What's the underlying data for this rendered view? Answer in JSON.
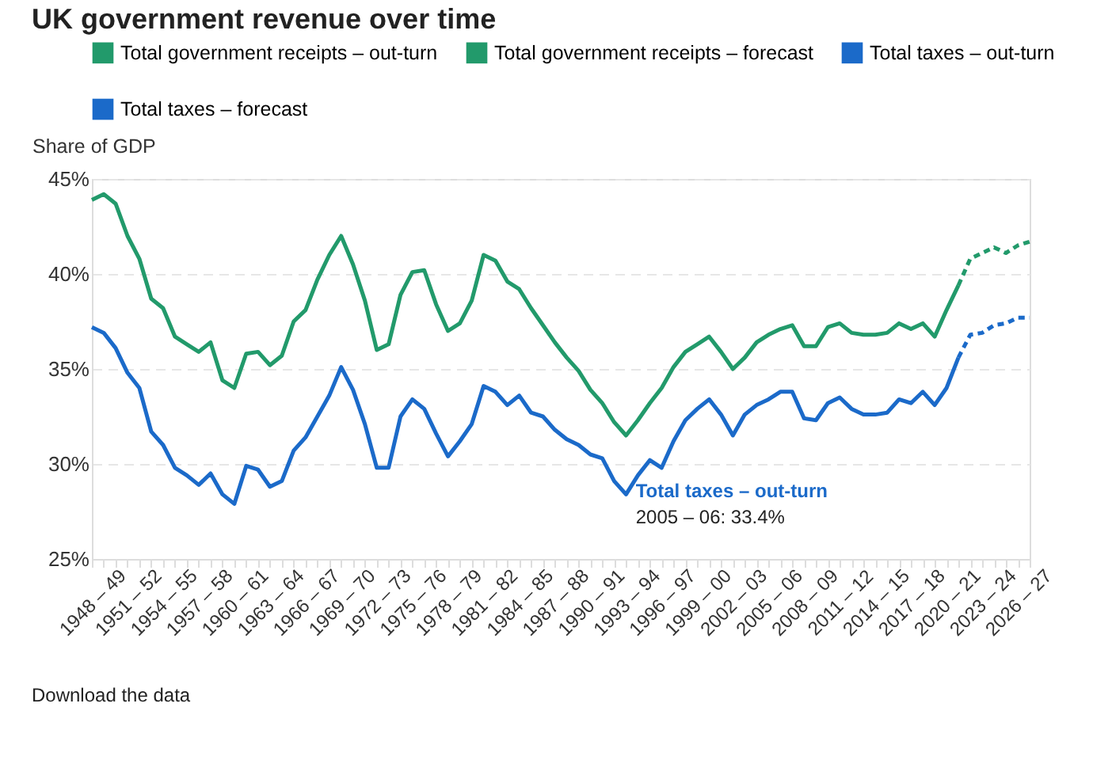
{
  "chart_data": {
    "type": "line",
    "title": "UK government revenue over time",
    "ylabel": "Share of GDP",
    "categories": [
      "1948 – 49",
      null,
      null,
      "1951 – 52",
      null,
      null,
      "1954 – 55",
      null,
      null,
      "1957 – 58",
      null,
      null,
      "1960 – 61",
      null,
      null,
      "1963 – 64",
      null,
      null,
      "1966 – 67",
      null,
      null,
      "1969 – 70",
      null,
      null,
      "1972 – 73",
      null,
      null,
      "1975 – 76",
      null,
      null,
      "1978 – 79",
      null,
      null,
      "1981 – 82",
      null,
      null,
      "1984 – 85",
      null,
      null,
      "1987 – 88",
      null,
      null,
      "1990 – 91",
      null,
      null,
      "1993 – 94",
      null,
      null,
      "1996 – 97",
      null,
      null,
      "1999 – 00",
      null,
      null,
      "2002 – 03",
      null,
      null,
      "2005 – 06",
      null,
      null,
      "2008 – 09",
      null,
      null,
      "2011 – 12",
      null,
      null,
      "2014 – 15",
      null,
      null,
      "2017 – 18",
      null,
      null,
      "2020 – 21",
      null,
      null,
      "2023 – 24",
      null,
      null,
      "2026 – 27",
      null
    ],
    "series": [
      {
        "name": "Total government receipts – out-turn",
        "color": "#229a6b",
        "line_style": "solid",
        "values": [
          43.9,
          44.2,
          43.7,
          42.0,
          40.8,
          38.7,
          38.2,
          36.7,
          36.3,
          35.9,
          36.4,
          34.4,
          34.0,
          35.8,
          35.9,
          35.2,
          35.7,
          37.5,
          38.1,
          39.7,
          41.0,
          42.0,
          40.5,
          38.6,
          36.0,
          36.3,
          38.9,
          40.1,
          40.2,
          38.4,
          37.0,
          37.4,
          38.6,
          41.0,
          40.7,
          39.6,
          39.2,
          38.2,
          37.3,
          36.4,
          35.6,
          34.9,
          33.9,
          33.2,
          32.2,
          31.5,
          32.3,
          33.2,
          34.0,
          35.1,
          35.9,
          36.3,
          36.7,
          35.9,
          35.0,
          35.6,
          36.4,
          36.8,
          37.1,
          37.3,
          36.2,
          36.2,
          37.2,
          37.4,
          36.9,
          36.8,
          36.8,
          36.9,
          37.4,
          37.1,
          37.4,
          36.7,
          38.1,
          39.4,
          null,
          null,
          null,
          null,
          null,
          null
        ]
      },
      {
        "name": "Total government receipts – forecast",
        "color": "#229a6b",
        "line_style": "dashed",
        "values": [
          null,
          null,
          null,
          null,
          null,
          null,
          null,
          null,
          null,
          null,
          null,
          null,
          null,
          null,
          null,
          null,
          null,
          null,
          null,
          null,
          null,
          null,
          null,
          null,
          null,
          null,
          null,
          null,
          null,
          null,
          null,
          null,
          null,
          null,
          null,
          null,
          null,
          null,
          null,
          null,
          null,
          null,
          null,
          null,
          null,
          null,
          null,
          null,
          null,
          null,
          null,
          null,
          null,
          null,
          null,
          null,
          null,
          null,
          null,
          null,
          null,
          null,
          null,
          null,
          null,
          null,
          null,
          null,
          null,
          null,
          null,
          null,
          null,
          39.4,
          40.8,
          41.1,
          41.4,
          41.1,
          41.5,
          41.7
        ]
      },
      {
        "name": "Total taxes – out-turn",
        "color": "#1b6ac9",
        "line_style": "solid",
        "values": [
          37.2,
          36.9,
          36.1,
          34.8,
          34.0,
          31.7,
          31.0,
          29.8,
          29.4,
          28.9,
          29.5,
          28.4,
          27.9,
          29.9,
          29.7,
          28.8,
          29.1,
          30.7,
          31.4,
          32.5,
          33.6,
          35.1,
          33.9,
          32.1,
          29.8,
          29.8,
          32.5,
          33.4,
          32.9,
          31.6,
          30.4,
          31.2,
          32.1,
          34.1,
          33.8,
          33.1,
          33.6,
          32.7,
          32.5,
          31.8,
          31.3,
          31.0,
          30.5,
          30.3,
          29.1,
          28.4,
          29.4,
          30.2,
          29.8,
          31.2,
          32.3,
          32.9,
          33.4,
          32.6,
          31.5,
          32.6,
          33.1,
          33.4,
          33.8,
          33.8,
          32.4,
          32.3,
          33.2,
          33.5,
          32.9,
          32.6,
          32.6,
          32.7,
          33.4,
          33.2,
          33.8,
          33.1,
          34.0,
          35.6,
          null,
          null,
          null,
          null,
          null,
          null
        ]
      },
      {
        "name": "Total taxes – forecast",
        "color": "#1b6ac9",
        "line_style": "dashed",
        "values": [
          null,
          null,
          null,
          null,
          null,
          null,
          null,
          null,
          null,
          null,
          null,
          null,
          null,
          null,
          null,
          null,
          null,
          null,
          null,
          null,
          null,
          null,
          null,
          null,
          null,
          null,
          null,
          null,
          null,
          null,
          null,
          null,
          null,
          null,
          null,
          null,
          null,
          null,
          null,
          null,
          null,
          null,
          null,
          null,
          null,
          null,
          null,
          null,
          null,
          null,
          null,
          null,
          null,
          null,
          null,
          null,
          null,
          null,
          null,
          null,
          null,
          null,
          null,
          null,
          null,
          null,
          null,
          null,
          null,
          null,
          null,
          null,
          null,
          35.6,
          36.8,
          36.9,
          37.3,
          37.4,
          37.7,
          37.7
        ]
      }
    ],
    "ylim": [
      25,
      45
    ],
    "yticks": [
      {
        "value": 25,
        "label": "25%"
      },
      {
        "value": 30,
        "label": "30%"
      },
      {
        "value": 35,
        "label": "35%"
      },
      {
        "value": 40,
        "label": "40%"
      },
      {
        "value": 45,
        "label": "45%"
      }
    ],
    "grid": "y",
    "legend": "top",
    "annotations": [
      "Total taxes – out-turn",
      "2005 – 06: 33.4%",
      "Download the data"
    ]
  }
}
